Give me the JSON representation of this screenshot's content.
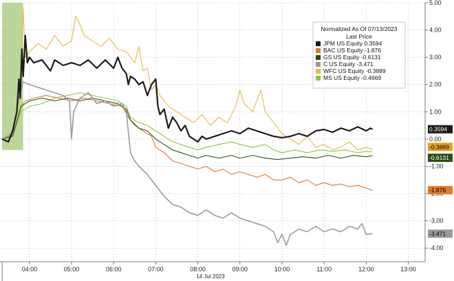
{
  "chart_data": {
    "type": "line",
    "legend": {
      "title": "Normalized As Of 07/13/2023",
      "subtitle": "Last Price",
      "placement": "top-right"
    },
    "date_label": "14 Jul 2023",
    "x_ticks": [
      "04:00",
      "05:00",
      "06:00",
      "07:00",
      "08:00",
      "09:00",
      "10:00",
      "11:00",
      "12:00",
      "13:00"
    ],
    "y_ticks": [
      "5.00",
      "4.00",
      "3.00",
      "2.00",
      "1.00",
      "0.00",
      "-1.00",
      "-2.00",
      "-3.00",
      "-4.00"
    ],
    "ylim": [
      -4.5,
      5.0
    ],
    "xlim": [
      3.3,
      13.4
    ],
    "grid": true,
    "highlight": {
      "x_start": 3.35,
      "x_end": 3.85,
      "color": "#a4c878"
    },
    "series": [
      {
        "name": "JPM US Equity",
        "last": "0.3594",
        "color": "#1a1a1a",
        "badge_bg": "#1a1a1a",
        "badge_fg": "#ffffff",
        "width": 2.2,
        "points": [
          [
            3.35,
            0.0
          ],
          [
            3.5,
            -0.1
          ],
          [
            3.6,
            0.3
          ],
          [
            3.7,
            1.0
          ],
          [
            3.75,
            2.2
          ],
          [
            3.78,
            1.5
          ],
          [
            3.82,
            3.3
          ],
          [
            3.85,
            2.3
          ],
          [
            3.9,
            3.8
          ],
          [
            3.95,
            2.8
          ],
          [
            4.0,
            3.0
          ],
          [
            4.1,
            2.8
          ],
          [
            4.3,
            2.9
          ],
          [
            4.5,
            2.5
          ],
          [
            4.6,
            2.9
          ],
          [
            4.8,
            2.7
          ],
          [
            5.0,
            2.8
          ],
          [
            5.2,
            2.7
          ],
          [
            5.4,
            2.9
          ],
          [
            5.6,
            2.6
          ],
          [
            5.8,
            2.9
          ],
          [
            6.0,
            2.6
          ],
          [
            6.1,
            3.0
          ],
          [
            6.2,
            2.6
          ],
          [
            6.3,
            2.4
          ],
          [
            6.35,
            2.0
          ],
          [
            6.4,
            2.3
          ],
          [
            6.5,
            2.2
          ],
          [
            6.6,
            2.0
          ],
          [
            6.7,
            2.1
          ],
          [
            6.8,
            1.6
          ],
          [
            6.9,
            2.0
          ],
          [
            7.0,
            2.2
          ],
          [
            7.05,
            1.2
          ],
          [
            7.1,
            0.9
          ],
          [
            7.2,
            1.1
          ],
          [
            7.3,
            0.4
          ],
          [
            7.4,
            0.8
          ],
          [
            7.5,
            0.6
          ],
          [
            7.6,
            0.3
          ],
          [
            7.7,
            0.5
          ],
          [
            7.8,
            0.1
          ],
          [
            7.9,
            0.0
          ],
          [
            8.0,
            -0.1
          ],
          [
            8.1,
            0.1
          ],
          [
            8.2,
            0.0
          ],
          [
            8.4,
            0.1
          ],
          [
            8.6,
            0.2
          ],
          [
            8.8,
            0.3
          ],
          [
            9.0,
            0.2
          ],
          [
            9.2,
            0.4
          ],
          [
            9.4,
            0.3
          ],
          [
            9.6,
            0.2
          ],
          [
            9.8,
            0.1
          ],
          [
            10.0,
            0.05
          ],
          [
            10.2,
            0.1
          ],
          [
            10.4,
            0.2
          ],
          [
            10.6,
            0.1
          ],
          [
            10.8,
            0.3
          ],
          [
            11.0,
            0.35
          ],
          [
            11.2,
            0.25
          ],
          [
            11.4,
            0.4
          ],
          [
            11.6,
            0.3
          ],
          [
            11.8,
            0.45
          ],
          [
            12.0,
            0.3
          ],
          [
            12.1,
            0.4
          ],
          [
            12.15,
            0.36
          ]
        ]
      },
      {
        "name": "BAC US Equity",
        "last": "-1.876",
        "color": "#e07a28",
        "badge_bg": "#e07a28",
        "badge_fg": "#000000",
        "width": 1.1,
        "points": [
          [
            3.35,
            0.0
          ],
          [
            3.6,
            0.1
          ],
          [
            3.8,
            1.2
          ],
          [
            3.9,
            1.4
          ],
          [
            4.1,
            1.5
          ],
          [
            4.4,
            1.6
          ],
          [
            4.7,
            1.5
          ],
          [
            5.0,
            1.4
          ],
          [
            5.3,
            1.5
          ],
          [
            5.6,
            1.4
          ],
          [
            5.9,
            1.3
          ],
          [
            6.2,
            1.2
          ],
          [
            6.35,
            0.8
          ],
          [
            6.5,
            0.5
          ],
          [
            6.7,
            0.3
          ],
          [
            6.9,
            0.1
          ],
          [
            7.0,
            -0.3
          ],
          [
            7.2,
            -0.5
          ],
          [
            7.4,
            -0.8
          ],
          [
            7.6,
            -0.9
          ],
          [
            7.8,
            -1.0
          ],
          [
            8.0,
            -1.1
          ],
          [
            8.2,
            -1.0
          ],
          [
            8.4,
            -1.2
          ],
          [
            8.6,
            -1.1
          ],
          [
            8.8,
            -1.3
          ],
          [
            9.0,
            -1.2
          ],
          [
            9.2,
            -1.3
          ],
          [
            9.4,
            -1.4
          ],
          [
            9.6,
            -1.3
          ],
          [
            9.8,
            -1.5
          ],
          [
            10.0,
            -1.5
          ],
          [
            10.2,
            -1.4
          ],
          [
            10.4,
            -1.6
          ],
          [
            10.6,
            -1.5
          ],
          [
            10.8,
            -1.7
          ],
          [
            11.0,
            -1.6
          ],
          [
            11.2,
            -1.7
          ],
          [
            11.4,
            -1.65
          ],
          [
            11.6,
            -1.75
          ],
          [
            11.8,
            -1.7
          ],
          [
            12.0,
            -1.8
          ],
          [
            12.15,
            -1.88
          ]
        ]
      },
      {
        "name": "GS US Equity",
        "last": "-0.6131",
        "color": "#2f4a14",
        "badge_bg": "#2f4a14",
        "badge_fg": "#ffffff",
        "width": 1.1,
        "points": [
          [
            3.35,
            0.0
          ],
          [
            3.6,
            0.1
          ],
          [
            3.8,
            1.2
          ],
          [
            4.0,
            1.4
          ],
          [
            4.3,
            1.5
          ],
          [
            4.6,
            1.4
          ],
          [
            4.9,
            1.5
          ],
          [
            5.2,
            1.4
          ],
          [
            5.5,
            1.5
          ],
          [
            5.8,
            1.4
          ],
          [
            6.1,
            1.3
          ],
          [
            6.3,
            1.1
          ],
          [
            6.4,
            0.7
          ],
          [
            6.6,
            0.4
          ],
          [
            6.8,
            0.3
          ],
          [
            7.0,
            0.0
          ],
          [
            7.2,
            -0.2
          ],
          [
            7.4,
            -0.4
          ],
          [
            7.6,
            -0.5
          ],
          [
            7.8,
            -0.6
          ],
          [
            8.0,
            -0.7
          ],
          [
            8.2,
            -0.6
          ],
          [
            8.5,
            -0.7
          ],
          [
            8.8,
            -0.6
          ],
          [
            9.0,
            -0.7
          ],
          [
            9.3,
            -0.6
          ],
          [
            9.6,
            -0.7
          ],
          [
            9.9,
            -0.75
          ],
          [
            10.2,
            -0.7
          ],
          [
            10.5,
            -0.65
          ],
          [
            10.8,
            -0.7
          ],
          [
            11.1,
            -0.6
          ],
          [
            11.4,
            -0.7
          ],
          [
            11.7,
            -0.6
          ],
          [
            12.0,
            -0.65
          ],
          [
            12.15,
            -0.61
          ]
        ]
      },
      {
        "name": "C US Equity",
        "last": "-3.471",
        "color": "#9a9a9a",
        "badge_bg": "#9a9a9a",
        "badge_fg": "#000000",
        "width": 1.6,
        "points": [
          [
            3.35,
            0.0
          ],
          [
            3.6,
            0.2
          ],
          [
            3.75,
            1.5
          ],
          [
            3.85,
            2.1
          ],
          [
            4.0,
            2.0
          ],
          [
            4.2,
            1.9
          ],
          [
            4.4,
            1.8
          ],
          [
            4.6,
            1.7
          ],
          [
            4.8,
            1.6
          ],
          [
            4.95,
            1.4
          ],
          [
            5.0,
            0.0
          ],
          [
            5.05,
            1.0
          ],
          [
            5.2,
            1.5
          ],
          [
            5.4,
            1.7
          ],
          [
            5.6,
            1.3
          ],
          [
            5.8,
            1.4
          ],
          [
            6.0,
            1.2
          ],
          [
            6.2,
            1.3
          ],
          [
            6.3,
            1.0
          ],
          [
            6.4,
            -0.5
          ],
          [
            6.5,
            -0.8
          ],
          [
            6.6,
            -1.0
          ],
          [
            6.8,
            -1.3
          ],
          [
            7.0,
            -1.7
          ],
          [
            7.2,
            -2.1
          ],
          [
            7.4,
            -2.4
          ],
          [
            7.6,
            -2.5
          ],
          [
            7.8,
            -2.7
          ],
          [
            8.0,
            -2.8
          ],
          [
            8.2,
            -2.6
          ],
          [
            8.4,
            -2.8
          ],
          [
            8.6,
            -2.9
          ],
          [
            8.8,
            -2.7
          ],
          [
            9.0,
            -2.9
          ],
          [
            9.2,
            -3.0
          ],
          [
            9.4,
            -3.1
          ],
          [
            9.6,
            -3.2
          ],
          [
            9.8,
            -3.4
          ],
          [
            9.9,
            -3.8
          ],
          [
            10.0,
            -3.5
          ],
          [
            10.1,
            -3.9
          ],
          [
            10.2,
            -3.5
          ],
          [
            10.4,
            -3.3
          ],
          [
            10.6,
            -3.4
          ],
          [
            10.8,
            -3.2
          ],
          [
            11.0,
            -3.4
          ],
          [
            11.2,
            -3.3
          ],
          [
            11.4,
            -3.4
          ],
          [
            11.6,
            -3.2
          ],
          [
            11.8,
            -3.3
          ],
          [
            11.9,
            -3.1
          ],
          [
            12.0,
            -3.5
          ],
          [
            12.15,
            -3.47
          ]
        ]
      },
      {
        "name": "WFC US Equity",
        "last": "-0.3889",
        "color": "#e8b84a",
        "badge_bg": "#e8a020",
        "badge_fg": "#000000",
        "width": 1.1,
        "points": [
          [
            3.35,
            0.0
          ],
          [
            3.6,
            0.3
          ],
          [
            3.7,
            1.0
          ],
          [
            3.8,
            2.5
          ],
          [
            3.85,
            4.8
          ],
          [
            3.9,
            3.0
          ],
          [
            4.0,
            3.2
          ],
          [
            4.2,
            3.5
          ],
          [
            4.4,
            3.3
          ],
          [
            4.6,
            3.8
          ],
          [
            4.8,
            3.4
          ],
          [
            5.0,
            3.6
          ],
          [
            5.1,
            4.5
          ],
          [
            5.2,
            4.2
          ],
          [
            5.3,
            3.8
          ],
          [
            5.5,
            3.6
          ],
          [
            5.7,
            3.4
          ],
          [
            5.9,
            3.7
          ],
          [
            6.0,
            3.5
          ],
          [
            6.1,
            3.3
          ],
          [
            6.3,
            3.2
          ],
          [
            6.5,
            2.8
          ],
          [
            6.6,
            3.4
          ],
          [
            6.7,
            2.5
          ],
          [
            6.8,
            2.6
          ],
          [
            6.9,
            1.8
          ],
          [
            7.0,
            2.0
          ],
          [
            7.1,
            1.6
          ],
          [
            7.3,
            1.2
          ],
          [
            7.5,
            1.0
          ],
          [
            7.7,
            0.8
          ],
          [
            7.9,
            0.6
          ],
          [
            8.1,
            0.9
          ],
          [
            8.3,
            0.5
          ],
          [
            8.5,
            0.8
          ],
          [
            8.7,
            0.6
          ],
          [
            8.9,
            1.2
          ],
          [
            9.0,
            1.8
          ],
          [
            9.1,
            1.3
          ],
          [
            9.3,
            1.0
          ],
          [
            9.5,
            1.8
          ],
          [
            9.6,
            1.0
          ],
          [
            9.8,
            0.6
          ],
          [
            10.0,
            0.2
          ],
          [
            10.2,
            0.0
          ],
          [
            10.4,
            -0.2
          ],
          [
            10.6,
            0.1
          ],
          [
            10.8,
            -0.3
          ],
          [
            11.0,
            -0.2
          ],
          [
            11.2,
            -0.4
          ],
          [
            11.4,
            -0.3
          ],
          [
            11.6,
            -0.1
          ],
          [
            11.8,
            -0.4
          ],
          [
            12.0,
            -0.3
          ],
          [
            12.15,
            -0.39
          ]
        ]
      },
      {
        "name": "MS US Equity",
        "last": "-0.4669",
        "color": "#8cc63e",
        "badge_bg": "#8cc63e",
        "badge_fg": "#000000",
        "width": 1.1,
        "points": [
          [
            3.35,
            0.0
          ],
          [
            3.6,
            0.15
          ],
          [
            3.8,
            1.0
          ],
          [
            4.0,
            1.2
          ],
          [
            4.3,
            1.3
          ],
          [
            4.6,
            1.5
          ],
          [
            4.9,
            1.6
          ],
          [
            5.2,
            1.7
          ],
          [
            5.5,
            1.6
          ],
          [
            5.8,
            1.5
          ],
          [
            6.1,
            1.4
          ],
          [
            6.3,
            1.2
          ],
          [
            6.4,
            0.8
          ],
          [
            6.6,
            0.6
          ],
          [
            6.8,
            0.5
          ],
          [
            7.0,
            0.3
          ],
          [
            7.2,
            0.1
          ],
          [
            7.4,
            -0.1
          ],
          [
            7.6,
            -0.2
          ],
          [
            7.8,
            -0.3
          ],
          [
            8.0,
            -0.4
          ],
          [
            8.2,
            -0.3
          ],
          [
            8.5,
            -0.2
          ],
          [
            8.8,
            -0.1
          ],
          [
            9.0,
            -0.2
          ],
          [
            9.3,
            -0.3
          ],
          [
            9.6,
            -0.2
          ],
          [
            9.8,
            -0.4
          ],
          [
            10.0,
            -0.5
          ],
          [
            10.3,
            -0.4
          ],
          [
            10.6,
            -0.5
          ],
          [
            10.9,
            -0.4
          ],
          [
            11.2,
            -0.45
          ],
          [
            11.5,
            -0.4
          ],
          [
            11.8,
            -0.5
          ],
          [
            12.0,
            -0.45
          ],
          [
            12.15,
            -0.47
          ]
        ]
      }
    ]
  }
}
